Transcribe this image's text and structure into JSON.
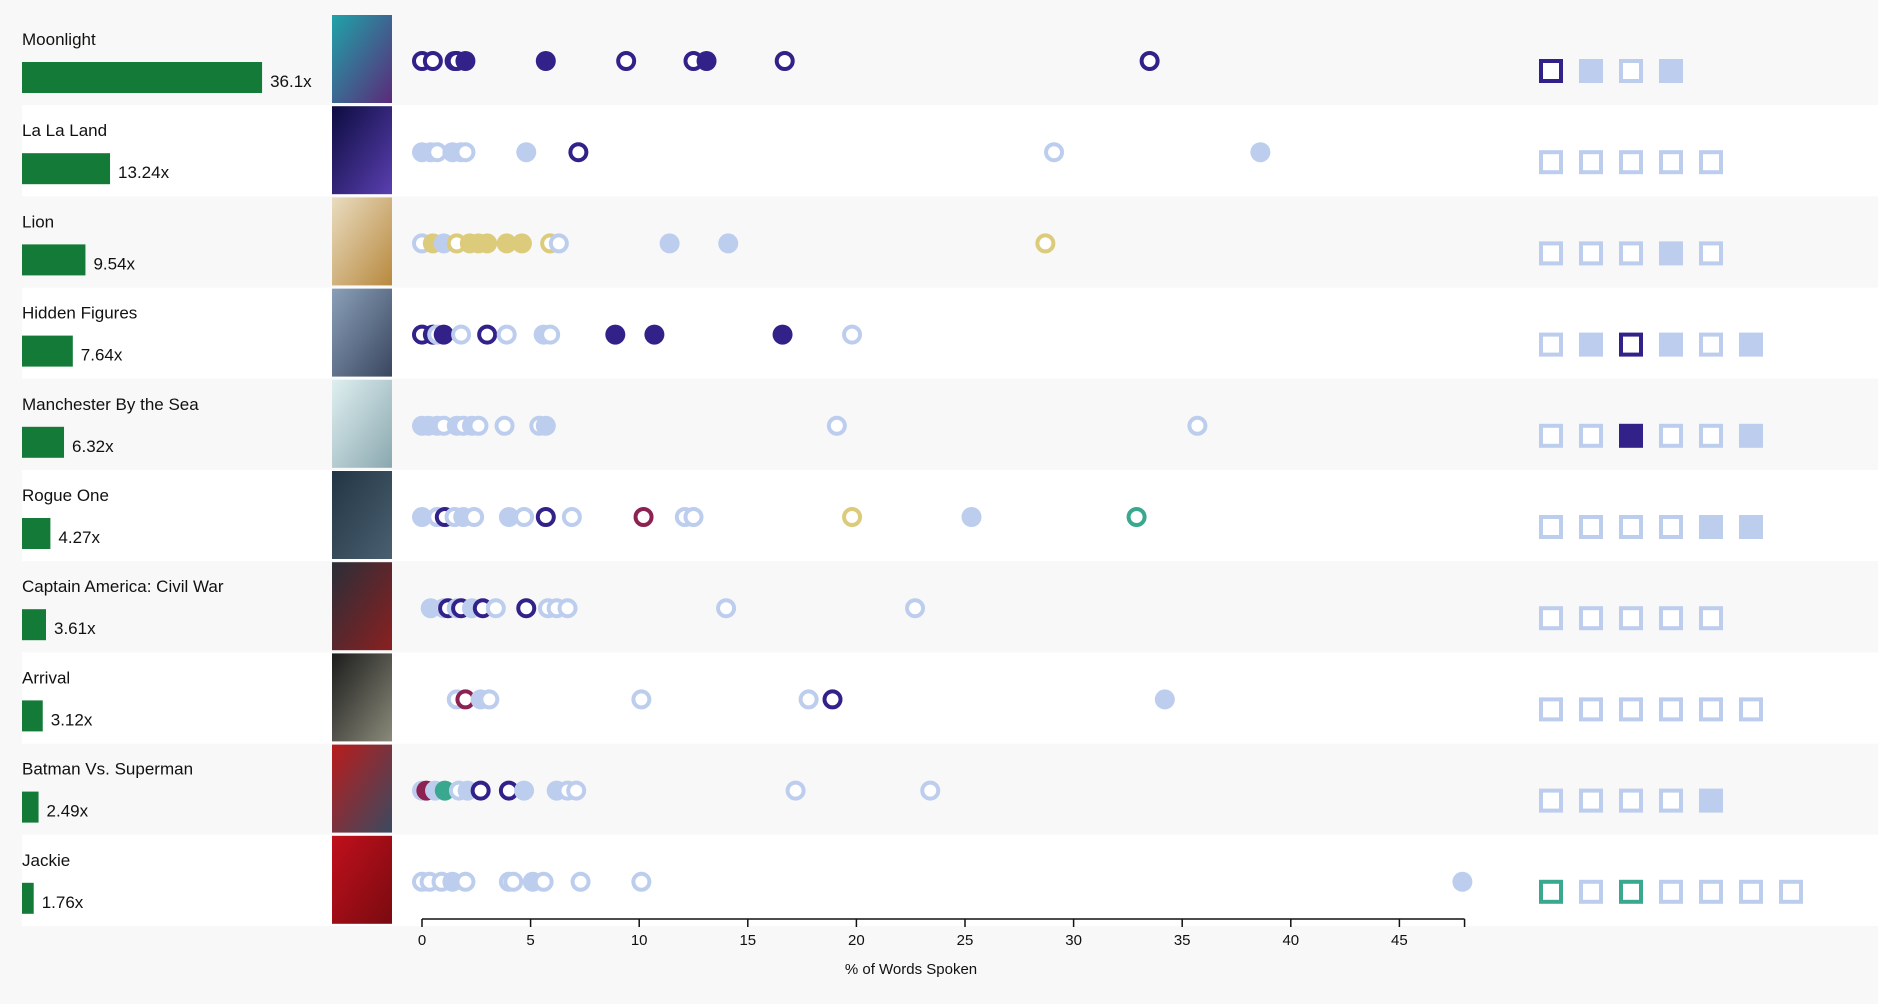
{
  "colors": {
    "dark": "#33218a",
    "light": "#bccdee",
    "gold": "#dccb7a",
    "maroon": "#8b2252",
    "teal": "#3aa88f",
    "bar": "#137a37",
    "row_alt": "#f8f8f8",
    "row": "#ffffff"
  },
  "chart_data": {
    "type": "scatter",
    "xlabel": "% of Words Spoken",
    "xlim": [
      0,
      48
    ],
    "xticks": [
      0,
      5,
      10,
      15,
      20,
      25,
      30,
      35,
      40,
      45
    ],
    "grid": false,
    "rows": [
      {
        "title": "Moonlight",
        "multiplier": 36.1,
        "multiplier_label": "36.1x",
        "dots": [
          [
            0,
            "dark",
            0
          ],
          [
            0.5,
            "dark",
            0
          ],
          [
            1.5,
            "dark",
            1
          ],
          [
            1.6,
            "dark",
            0
          ],
          [
            2,
            "dark",
            1
          ],
          [
            5.7,
            "dark",
            1
          ],
          [
            9.4,
            "dark",
            0
          ],
          [
            12.5,
            "dark",
            0
          ],
          [
            13.1,
            "dark",
            1
          ],
          [
            16.7,
            "dark",
            0
          ],
          [
            33.5,
            "dark",
            0
          ]
        ],
        "squares": [
          [
            "dark",
            0
          ],
          [
            "light",
            1
          ],
          [
            "light",
            0
          ],
          [
            "light",
            1
          ]
        ]
      },
      {
        "title": "La La Land",
        "multiplier": 13.24,
        "multiplier_label": "13.24x",
        "dots": [
          [
            0,
            "light",
            1
          ],
          [
            0.4,
            "light",
            1
          ],
          [
            0.7,
            "light",
            0
          ],
          [
            1.4,
            "light",
            1
          ],
          [
            1.8,
            "light",
            1
          ],
          [
            2,
            "light",
            0
          ],
          [
            4.8,
            "light",
            1
          ],
          [
            7.2,
            "dark",
            0
          ],
          [
            29.1,
            "light",
            0
          ],
          [
            38.6,
            "light",
            1
          ]
        ],
        "squares": [
          [
            "light",
            0
          ],
          [
            "light",
            0
          ],
          [
            "light",
            0
          ],
          [
            "light",
            0
          ],
          [
            "light",
            0
          ]
        ]
      },
      {
        "title": "Lion",
        "multiplier": 9.54,
        "multiplier_label": "9.54x",
        "dots": [
          [
            0,
            "light",
            0
          ],
          [
            0.5,
            "gold",
            1
          ],
          [
            1,
            "light",
            1
          ],
          [
            1.6,
            "gold",
            0
          ],
          [
            2.2,
            "gold",
            1
          ],
          [
            2.6,
            "gold",
            1
          ],
          [
            3,
            "gold",
            1
          ],
          [
            3.9,
            "gold",
            1
          ],
          [
            4.6,
            "gold",
            1
          ],
          [
            5.9,
            "gold",
            0
          ],
          [
            6.3,
            "light",
            0
          ],
          [
            11.4,
            "light",
            1
          ],
          [
            14.1,
            "light",
            1
          ],
          [
            28.7,
            "gold",
            0
          ]
        ],
        "squares": [
          [
            "light",
            0
          ],
          [
            "light",
            0
          ],
          [
            "light",
            0
          ],
          [
            "light",
            1
          ],
          [
            "light",
            0
          ]
        ]
      },
      {
        "title": "Hidden Figures",
        "multiplier": 7.64,
        "multiplier_label": "7.64x",
        "dots": [
          [
            0,
            "dark",
            0
          ],
          [
            0.5,
            "dark",
            1
          ],
          [
            0.7,
            "light",
            0
          ],
          [
            1,
            "dark",
            1
          ],
          [
            1.8,
            "light",
            0
          ],
          [
            3,
            "dark",
            0
          ],
          [
            3.9,
            "light",
            0
          ],
          [
            5.6,
            "light",
            1
          ],
          [
            5.9,
            "light",
            0
          ],
          [
            8.9,
            "dark",
            1
          ],
          [
            10.7,
            "dark",
            1
          ],
          [
            16.6,
            "dark",
            1
          ],
          [
            19.8,
            "light",
            0
          ]
        ],
        "squares": [
          [
            "light",
            0
          ],
          [
            "light",
            1
          ],
          [
            "dark",
            0
          ],
          [
            "light",
            1
          ],
          [
            "light",
            0
          ],
          [
            "light",
            1
          ]
        ]
      },
      {
        "title": "Manchester By the Sea",
        "multiplier": 6.32,
        "multiplier_label": "6.32x",
        "dots": [
          [
            0,
            "light",
            1
          ],
          [
            0.3,
            "light",
            1
          ],
          [
            0.7,
            "light",
            1
          ],
          [
            1,
            "light",
            0
          ],
          [
            1.6,
            "light",
            1
          ],
          [
            1.9,
            "light",
            0
          ],
          [
            2.3,
            "light",
            1
          ],
          [
            2.6,
            "light",
            0
          ],
          [
            3.8,
            "light",
            0
          ],
          [
            5.4,
            "light",
            0
          ],
          [
            5.7,
            "light",
            1
          ],
          [
            19.1,
            "light",
            0
          ],
          [
            35.7,
            "light",
            0
          ]
        ],
        "squares": [
          [
            "light",
            0
          ],
          [
            "light",
            0
          ],
          [
            "dark",
            1
          ],
          [
            "light",
            0
          ],
          [
            "light",
            0
          ],
          [
            "light",
            1
          ]
        ]
      },
      {
        "title": "Rogue One",
        "multiplier": 4.27,
        "multiplier_label": "4.27x",
        "dots": [
          [
            0,
            "light",
            1
          ],
          [
            0.7,
            "light",
            0
          ],
          [
            1.05,
            "dark",
            0
          ],
          [
            1.5,
            "light",
            0
          ],
          [
            1.9,
            "light",
            1
          ],
          [
            2.4,
            "light",
            0
          ],
          [
            4,
            "light",
            1
          ],
          [
            4.7,
            "light",
            0
          ],
          [
            5.7,
            "dark",
            0
          ],
          [
            6.9,
            "light",
            0
          ],
          [
            10.2,
            "maroon",
            0
          ],
          [
            12.1,
            "light",
            0
          ],
          [
            12.5,
            "light",
            0
          ],
          [
            19.8,
            "gold",
            0
          ],
          [
            25.3,
            "light",
            1
          ],
          [
            32.9,
            "teal",
            0
          ]
        ],
        "squares": [
          [
            "light",
            0
          ],
          [
            "light",
            0
          ],
          [
            "light",
            0
          ],
          [
            "light",
            0
          ],
          [
            "light",
            1
          ],
          [
            "light",
            1
          ]
        ]
      },
      {
        "title": "Captain America: Civil War",
        "multiplier": 3.61,
        "multiplier_label": "3.61x",
        "dots": [
          [
            0.4,
            "light",
            1
          ],
          [
            1,
            "light",
            0
          ],
          [
            1.2,
            "dark",
            0
          ],
          [
            1.6,
            "light",
            1
          ],
          [
            1.8,
            "dark",
            0
          ],
          [
            2.3,
            "light",
            1
          ],
          [
            2.8,
            "dark",
            0
          ],
          [
            3.4,
            "light",
            0
          ],
          [
            4.8,
            "dark",
            0
          ],
          [
            5.8,
            "light",
            0
          ],
          [
            6.2,
            "light",
            0
          ],
          [
            6.7,
            "light",
            0
          ],
          [
            14,
            "light",
            0
          ],
          [
            22.7,
            "light",
            0
          ]
        ],
        "squares": [
          [
            "light",
            0
          ],
          [
            "light",
            0
          ],
          [
            "light",
            0
          ],
          [
            "light",
            0
          ],
          [
            "light",
            0
          ]
        ]
      },
      {
        "title": "Arrival",
        "multiplier": 3.12,
        "multiplier_label": "3.12x",
        "dots": [
          [
            1.6,
            "light",
            0
          ],
          [
            2,
            "maroon",
            0
          ],
          [
            2.7,
            "light",
            1
          ],
          [
            3.1,
            "light",
            0
          ],
          [
            10.1,
            "light",
            0
          ],
          [
            17.8,
            "light",
            0
          ],
          [
            18.9,
            "dark",
            0
          ],
          [
            34.2,
            "light",
            1
          ]
        ],
        "squares": [
          [
            "light",
            0
          ],
          [
            "light",
            0
          ],
          [
            "light",
            0
          ],
          [
            "light",
            0
          ],
          [
            "light",
            0
          ],
          [
            "light",
            0
          ]
        ]
      },
      {
        "title": "Batman Vs. Superman",
        "multiplier": 2.49,
        "multiplier_label": "2.49x",
        "dots": [
          [
            0,
            "light",
            1
          ],
          [
            0.2,
            "maroon",
            1
          ],
          [
            0.6,
            "light",
            1
          ],
          [
            1.05,
            "teal",
            1
          ],
          [
            1.7,
            "light",
            0
          ],
          [
            2.1,
            "light",
            1
          ],
          [
            2.7,
            "dark",
            0
          ],
          [
            4,
            "dark",
            0
          ],
          [
            4.7,
            "light",
            1
          ],
          [
            6.2,
            "light",
            1
          ],
          [
            6.7,
            "light",
            0
          ],
          [
            7.1,
            "light",
            0
          ],
          [
            17.2,
            "light",
            0
          ],
          [
            23.4,
            "light",
            0
          ]
        ],
        "squares": [
          [
            "light",
            0
          ],
          [
            "light",
            0
          ],
          [
            "light",
            0
          ],
          [
            "light",
            0
          ],
          [
            "light",
            1
          ]
        ]
      },
      {
        "title": "Jackie",
        "multiplier": 1.76,
        "multiplier_label": "1.76x",
        "dots": [
          [
            0,
            "light",
            0
          ],
          [
            0.35,
            "light",
            0
          ],
          [
            0.9,
            "light",
            0
          ],
          [
            1.4,
            "light",
            1
          ],
          [
            2,
            "light",
            0
          ],
          [
            4,
            "light",
            0
          ],
          [
            4.2,
            "light",
            0
          ],
          [
            5.1,
            "light",
            1
          ],
          [
            5.6,
            "light",
            0
          ],
          [
            7.3,
            "light",
            0
          ],
          [
            10.1,
            "light",
            0
          ],
          [
            47.9,
            "light",
            1
          ]
        ],
        "squares": [
          [
            "teal",
            0
          ],
          [
            "light",
            0
          ],
          [
            "teal",
            0
          ],
          [
            "light",
            0
          ],
          [
            "light",
            0
          ],
          [
            "light",
            0
          ],
          [
            "light",
            0
          ]
        ]
      }
    ]
  }
}
